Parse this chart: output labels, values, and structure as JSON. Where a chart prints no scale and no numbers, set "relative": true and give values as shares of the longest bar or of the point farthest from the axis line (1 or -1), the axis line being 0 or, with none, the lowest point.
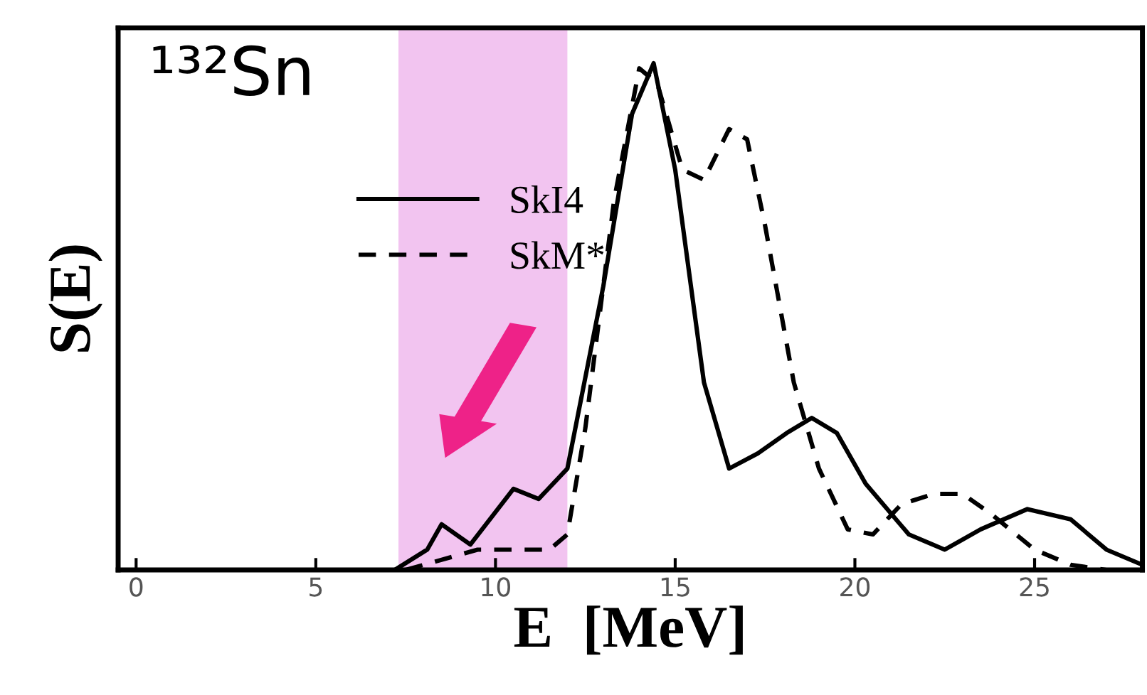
{
  "chart_data": {
    "type": "line",
    "relative": true,
    "xlabel": "E  [MeV]",
    "ylabel": "S(E)",
    "annotations": [
      "¹³²Sn"
    ],
    "xlim": [
      -0.5,
      28
    ],
    "xticks": [
      0,
      5,
      10,
      15,
      20,
      25
    ],
    "legend": "left",
    "grid": false,
    "tick_labels": "x",
    "bands": [
      {
        "axis": "x",
        "from": 7.3,
        "to": 12.0,
        "color": "#f2c4f0"
      }
    ],
    "series": [
      {
        "name": "SkI4",
        "color": "#000000",
        "line_style": "solid",
        "x": [
          7.2,
          8.1,
          8.5,
          9.3,
          10.5,
          11.2,
          12,
          13,
          13.8,
          14.4,
          15,
          15.8,
          16.5,
          17.3,
          18.1,
          18.8,
          19.5,
          20.3,
          21.5,
          22.5,
          23.5,
          24.8,
          26,
          27,
          28
        ],
        "values": [
          0.0,
          0.04,
          0.09,
          0.05,
          0.16,
          0.14,
          0.2,
          0.56,
          0.9,
          1.0,
          0.79,
          0.37,
          0.2,
          0.23,
          0.27,
          0.3,
          0.27,
          0.17,
          0.07,
          0.04,
          0.08,
          0.12,
          0.1,
          0.04,
          0.01
        ]
      },
      {
        "name": "SkM*",
        "color": "#000000",
        "line_style": "dashed",
        "x": [
          7.5,
          8,
          9.5,
          10.5,
          11.5,
          12,
          12.5,
          13.3,
          14.0,
          14.5,
          15.2,
          15.8,
          16.5,
          17.0,
          17.5,
          18.3,
          19,
          19.8,
          20.5,
          21.3,
          22.2,
          23,
          23.8,
          25,
          26,
          27
        ],
        "values": [
          0.0,
          0.01,
          0.04,
          0.04,
          0.04,
          0.07,
          0.28,
          0.73,
          0.99,
          0.96,
          0.79,
          0.77,
          0.87,
          0.85,
          0.68,
          0.37,
          0.2,
          0.08,
          0.07,
          0.13,
          0.15,
          0.15,
          0.11,
          0.04,
          0.01,
          0.0
        ]
      }
    ]
  }
}
